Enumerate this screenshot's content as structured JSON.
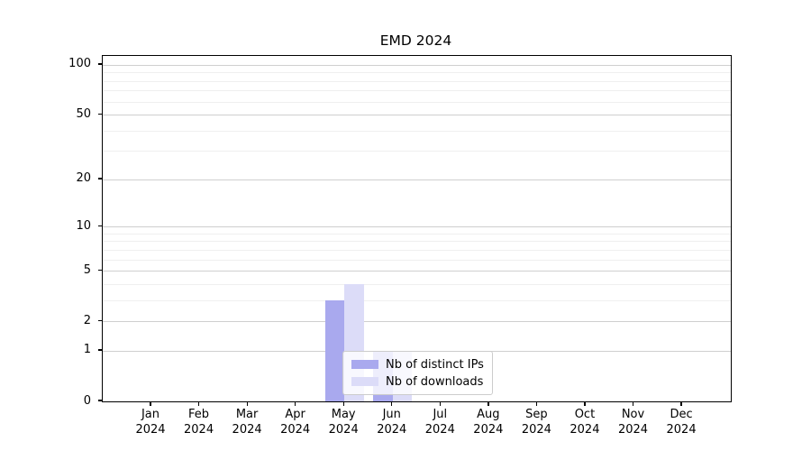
{
  "chart_data": {
    "type": "bar",
    "title": "EMD 2024",
    "categories": [
      "Jan",
      "Feb",
      "Mar",
      "Apr",
      "May",
      "Jun",
      "Jul",
      "Aug",
      "Sep",
      "Oct",
      "Nov",
      "Dec"
    ],
    "x_year": "2024",
    "series": [
      {
        "name": "Nb of distinct IPs",
        "color": "#a9a9ee",
        "values": [
          0,
          0,
          0,
          0,
          3,
          1,
          0,
          0,
          0,
          0,
          0,
          0
        ]
      },
      {
        "name": "Nb of downloads",
        "color": "#dcdcf8",
        "values": [
          0,
          0,
          0,
          0,
          4,
          1,
          0,
          0,
          0,
          0,
          0,
          0
        ]
      }
    ],
    "y_scale": "log10(1+v)",
    "y_ticks": [
      0,
      1,
      2,
      5,
      10,
      20,
      50,
      100
    ],
    "y_minor_ticks": [
      3,
      4,
      6,
      7,
      8,
      9,
      30,
      40,
      60,
      70,
      80,
      90
    ],
    "ylim": [
      0,
      113
    ],
    "grid": "horizontal-major-and-minor",
    "legend_position": "lower-center-inside"
  }
}
